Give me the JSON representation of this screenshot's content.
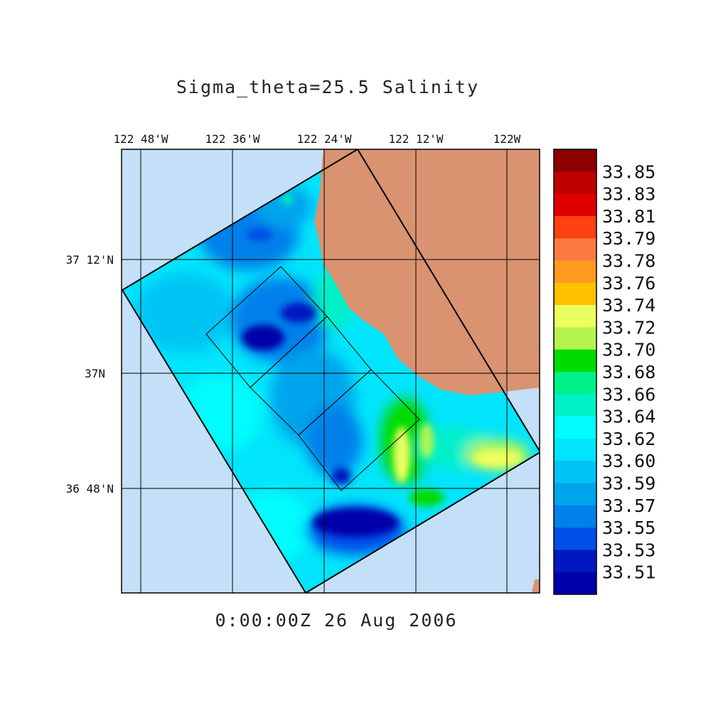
{
  "map": {
    "title": "Sigma_theta=25.5 Salinity",
    "timestamp": "0:00:00Z  26 Aug 2006",
    "lon_labels": [
      "122 48'W",
      "122 36'W",
      "122 24'W",
      "122 12'W",
      "122W"
    ],
    "lat_labels": [
      "37 12'N",
      "37N",
      "36 48'N"
    ],
    "colors": {
      "ocean": "#c3e0f8",
      "land": "#d99371",
      "grid": "#000000"
    }
  },
  "legend": {
    "labels": [
      "33.85",
      "33.83",
      "33.81",
      "33.79",
      "33.78",
      "33.76",
      "33.74",
      "33.72",
      "33.70",
      "33.68",
      "33.66",
      "33.64",
      "33.62",
      "33.60",
      "33.59",
      "33.57",
      "33.55",
      "33.53",
      "33.51"
    ],
    "colors": [
      "#8b0000",
      "#c00000",
      "#e00000",
      "#ff4010",
      "#ff7a40",
      "#ff9a20",
      "#ffc000",
      "#ecff60",
      "#b4f550",
      "#00dc00",
      "#00f08a",
      "#00f0c8",
      "#00fcfc",
      "#00e4fc",
      "#00c4f4",
      "#00a4ec",
      "#0080ea",
      "#0050e8",
      "#0018c0",
      "#0000a8"
    ]
  }
}
